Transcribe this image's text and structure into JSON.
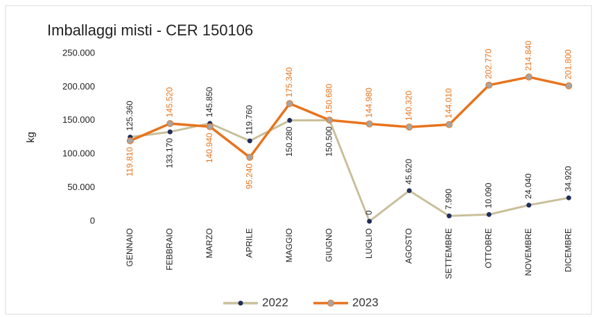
{
  "chart_data": {
    "type": "line",
    "title": "Imballaggi misti - CER 150106",
    "y_label": "kg",
    "categories": [
      "GENNAIO",
      "FEBBRAIO",
      "MARZO",
      "APRILE",
      "MAGGIO",
      "GIUGNO",
      "LUGLIO",
      "AGOSTO",
      "SETTEMBRE",
      "OTTOBRE",
      "NOVEMBRE",
      "DICEMBRE"
    ],
    "series": [
      {
        "name": "2022",
        "color": "#c9bf9a",
        "marker_color": "#1f2d5a",
        "values": [
          125360,
          133170,
          145850,
          119760,
          150280,
          150500,
          0,
          45620,
          7990,
          10090,
          24040,
          34920
        ],
        "value_labels": [
          "125.360",
          "133.170",
          "145.850",
          "119.760",
          "150.280",
          "150.500",
          "0",
          "45.620",
          "7.990",
          "10.090",
          "24.040",
          "34.920"
        ]
      },
      {
        "name": "2023",
        "color": "#e8731c",
        "marker_color": "#a6a6a6",
        "values": [
          119810,
          145520,
          140940,
          95240,
          175340,
          150680,
          144980,
          140320,
          144010,
          202770,
          214840,
          201800
        ],
        "value_labels": [
          "119.810",
          "145.520",
          "140.940",
          "95.240",
          "175.340",
          "150.680",
          "144.980",
          "140.320",
          "144.010",
          "202.770",
          "214.840",
          "201.800"
        ]
      }
    ],
    "ylim": [
      0,
      250000
    ],
    "yticks": [
      {
        "value": 0,
        "label": "0"
      },
      {
        "value": 50000,
        "label": "50.000"
      },
      {
        "value": 100000,
        "label": "100.000"
      },
      {
        "value": 150000,
        "label": "150.000"
      },
      {
        "value": 200000,
        "label": "200.000"
      },
      {
        "value": 250000,
        "label": "250.000"
      }
    ],
    "legend": "bottom"
  }
}
